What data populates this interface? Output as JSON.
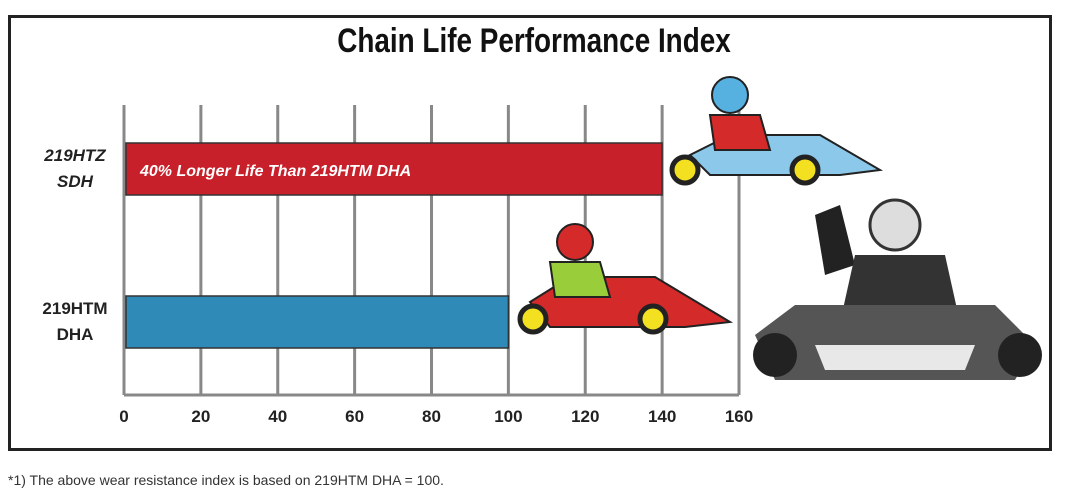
{
  "chart_data": {
    "type": "bar",
    "orientation": "horizontal",
    "title": "Chain Life Performance Index",
    "categories": [
      "219HTZ SDH",
      "219HTM DHA"
    ],
    "category_lines": [
      [
        "219HTZ",
        "SDH"
      ],
      [
        "219HTM",
        "DHA"
      ]
    ],
    "values": [
      140,
      100
    ],
    "colors": [
      "#c8202a",
      "#2f8ab8"
    ],
    "bar_annotation": "40% Longer Life Than 219HTM DHA",
    "xlim": [
      0,
      160
    ],
    "xticks": [
      0,
      20,
      40,
      60,
      80,
      100,
      120,
      140,
      160
    ],
    "grid": true,
    "xlabel": "",
    "ylabel": ""
  },
  "footnote": "*1) The above wear resistance index is based on 219HTM DHA = 100."
}
